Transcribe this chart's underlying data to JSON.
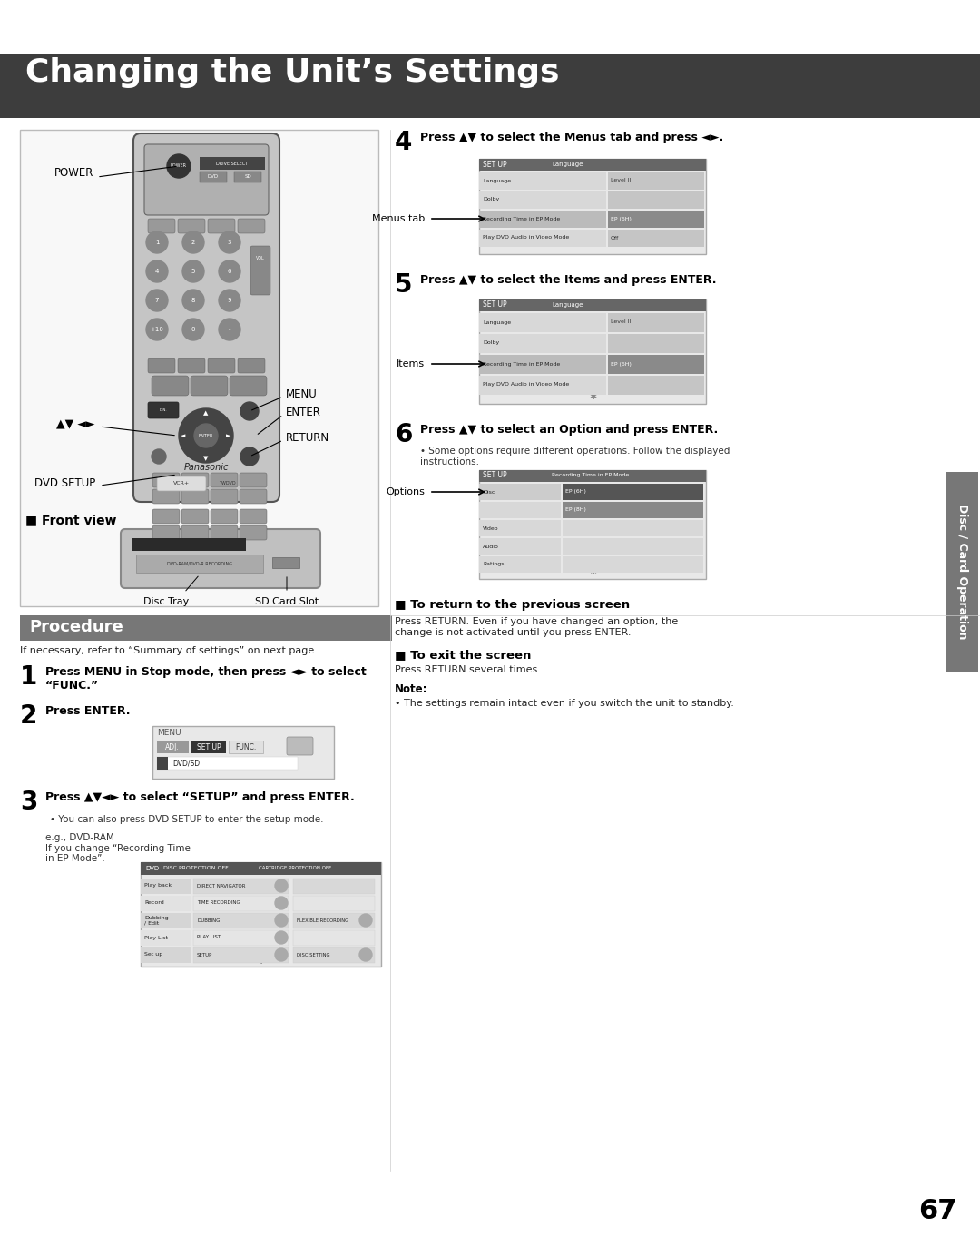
{
  "title": "Changing the Unit’s Settings",
  "title_bg": "#3d3d3d",
  "title_color": "#ffffff",
  "page_bg": "#ffffff",
  "page_number": "67",
  "procedure_bg": "#777777",
  "procedure_color": "#ffffff",
  "side_tab_bg": "#777777",
  "side_tab_text": "Disc / Card Operation",
  "step1_text": "Press MENU in Stop mode, then press ◄► to select\n“FUNC.”",
  "step2_text": "Press ENTER.",
  "step3_text": "Press ▲▼◄► to select “SETUP” and press ENTER.",
  "step3_sub": "• You can also press DVD SETUP to enter the setup mode.",
  "step4_text": "Press ▲▼ to select the Menus tab and press ◄►.",
  "step5_text": "Press ▲▼ to select the Items and press ENTER.",
  "step6_text": "Press ▲▼ to select an Option and press ENTER.",
  "step6_sub": "• Some options require different operations. Follow the displayed\ninstructions.",
  "return_title": "■ To return to the previous screen",
  "return_text": "Press RETURN. Even if you have changed an option, the\nchange is not activated until you press ENTER.",
  "exit_title": "■ To exit the screen",
  "exit_text": "Press RETURN several times.",
  "note_title": "Note:",
  "note_text": "• The settings remain intact even if you switch the unit to standby.",
  "procedure_intro": "If necessary, refer to “Summary of settings” on next page.",
  "front_view_label": "■ Front view",
  "power_label": "POWER",
  "menu_label": "MENU",
  "enter_label": "ENTER",
  "return_label": "RETURN",
  "dvd_setup_label": "DVD SETUP",
  "arrow_label": "▲▼ ◄►",
  "disc_tray_label": "Disc Tray",
  "sd_card_label": "SD Card Slot",
  "menus_tab_label": "Menus tab",
  "items_label": "Items",
  "options_label": "Options",
  "eg_label": "e.g., DVD-RAM\nIf you change “Recording Time\nin EP Mode”."
}
